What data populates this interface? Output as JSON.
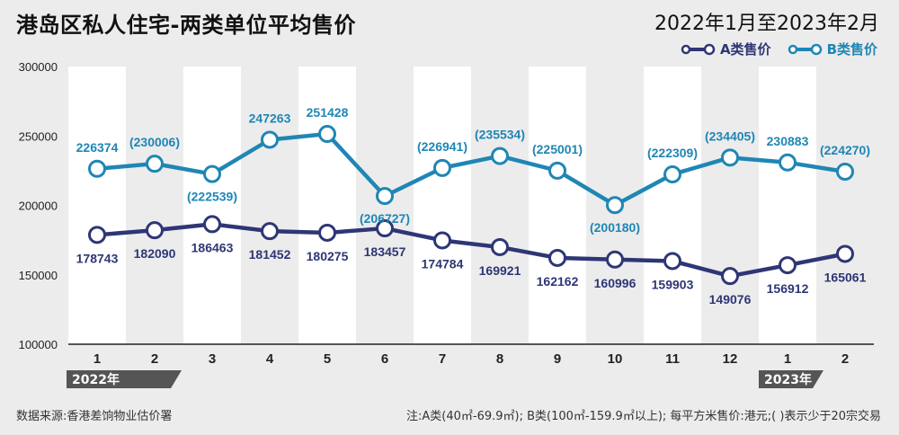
{
  "header": {
    "title": "港岛区私人住宅-两类单位平均售价",
    "period": "2022年1月至2023年2月"
  },
  "footer": {
    "source": "数据来源:香港差饷物业估价署",
    "note": "注:A类(40㎡-69.9㎡);  B类(100㎡-159.9㎡以上);  每平方米售价:港元;( )表示少于20宗交易"
  },
  "colors": {
    "seriesA": "#2e3675",
    "seriesB": "#1f86b5",
    "band": "#ffffff",
    "background": "#ececec",
    "yearTag": "#555555"
  },
  "chart_data": {
    "type": "line",
    "categories": [
      "1",
      "2",
      "3",
      "4",
      "5",
      "6",
      "7",
      "8",
      "9",
      "10",
      "11",
      "12",
      "1",
      "2"
    ],
    "ylim": [
      100000,
      300000
    ],
    "yticks": [
      "300000",
      "250000",
      "200000",
      "150000",
      "100000"
    ],
    "grid": false,
    "legend_position": "top-right",
    "year_tags": [
      {
        "label": "2022年",
        "index": 0
      },
      {
        "label": "2023年",
        "index": 12
      }
    ],
    "series": [
      {
        "name": "A类售价",
        "values": [
          178743,
          182090,
          186463,
          181452,
          180275,
          183457,
          174784,
          169921,
          162162,
          160996,
          159903,
          149076,
          156912,
          165061
        ],
        "labels": [
          "178743",
          "182090",
          "186463",
          "181452",
          "180275",
          "183457",
          "174784",
          "169921",
          "162162",
          "160996",
          "159903",
          "149076",
          "156912",
          "165061"
        ]
      },
      {
        "name": "B类售价",
        "values": [
          226374,
          230006,
          222539,
          247263,
          251428,
          206727,
          226941,
          235534,
          225001,
          200180,
          222309,
          234405,
          230883,
          224270
        ],
        "labels": [
          "226374",
          "(230006)",
          "(222539)",
          "247263",
          "251428",
          "(206727)",
          "(226941)",
          "(235534)",
          "(225001)",
          "(200180)",
          "(222309)",
          "(234405)",
          "230883",
          "(224270)"
        ]
      }
    ]
  }
}
